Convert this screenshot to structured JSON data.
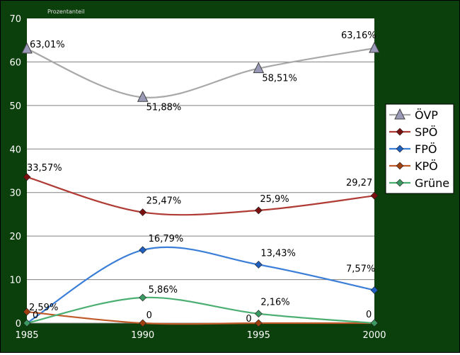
{
  "chart_data": {
    "type": "line",
    "title": "Prozentanteil",
    "x": [
      1985,
      1990,
      1995,
      2000
    ],
    "ylim": [
      0,
      70
    ],
    "yticks": [
      0,
      10,
      20,
      30,
      40,
      50,
      60,
      70
    ],
    "grid": true,
    "legend_position": "right",
    "colors": {
      "background": "#0b3f0b",
      "plot": "#ffffff",
      "grid": "#808080",
      "text": "#ffffff"
    },
    "series": [
      {
        "name": "ÖVP",
        "values": [
          63.01,
          51.88,
          58.51,
          63.16
        ],
        "labels": [
          "63,01%",
          "51,88%",
          "58,51%",
          "63,16%"
        ],
        "color": "#a8a8a8",
        "marker_color": "#9a9ab8",
        "marker": "triangle"
      },
      {
        "name": "SPÖ",
        "values": [
          33.57,
          25.47,
          25.9,
          29.27
        ],
        "labels": [
          "33,57%",
          "25,47%",
          "25,9%",
          "29,27"
        ],
        "color": "#b03a34",
        "marker_color": "#7a1010",
        "marker": "diamond"
      },
      {
        "name": "FPÖ",
        "values": [
          0,
          16.79,
          13.43,
          7.57
        ],
        "labels": [
          "",
          "16,79%",
          "13,43%",
          "7,57%"
        ],
        "color": "#3a7ed8",
        "marker_color": "#1f5fc0",
        "marker": "diamond"
      },
      {
        "name": "KPÖ",
        "values": [
          2.59,
          0,
          0,
          0
        ],
        "labels": [
          "2,59%",
          "0",
          "0",
          "0"
        ],
        "color": "#c05a28",
        "marker_color": "#a04010",
        "marker": "diamond"
      },
      {
        "name": "Grüne",
        "values": [
          0,
          5.86,
          2.16,
          0
        ],
        "labels": [
          "0",
          "5,86%",
          "2,16%",
          ""
        ],
        "color": "#4caf72",
        "marker_color": "#3a9a62",
        "marker": "diamond"
      }
    ]
  }
}
